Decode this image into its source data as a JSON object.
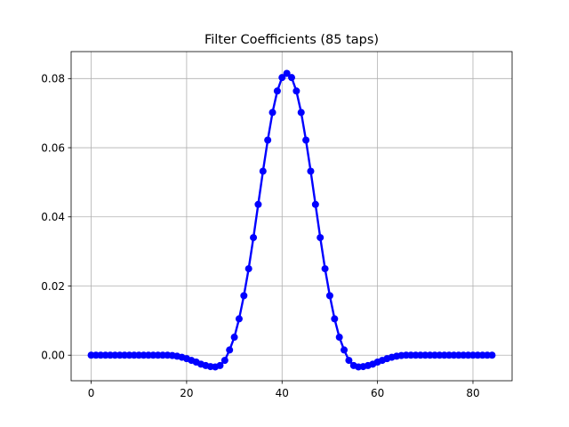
{
  "chart_data": {
    "type": "line",
    "title": "Filter Coefficients (85 taps)",
    "xlabel": "",
    "ylabel": "",
    "xlim": [
      -4.2,
      88.2
    ],
    "ylim": [
      -0.0074,
      0.0878
    ],
    "xticks": [
      0,
      20,
      40,
      60,
      80
    ],
    "xtick_labels": [
      "0",
      "20",
      "40",
      "60",
      "80"
    ],
    "yticks": [
      0.0,
      0.02,
      0.04,
      0.06,
      0.08
    ],
    "ytick_labels": [
      "0.00",
      "0.02",
      "0.04",
      "0.06",
      "0.08"
    ],
    "grid": true,
    "legend": "none",
    "series": [
      {
        "color": "#0000ff",
        "marker": "circle",
        "x": [
          0,
          1,
          2,
          3,
          4,
          5,
          6,
          7,
          8,
          9,
          10,
          11,
          12,
          13,
          14,
          15,
          16,
          17,
          18,
          19,
          20,
          21,
          22,
          23,
          24,
          25,
          26,
          27,
          28,
          29,
          30,
          31,
          32,
          33,
          34,
          35,
          36,
          37,
          38,
          39,
          40,
          41,
          42,
          43,
          44,
          45,
          46,
          47,
          48,
          49,
          50,
          51,
          52,
          53,
          54,
          55,
          56,
          57,
          58,
          59,
          60,
          61,
          62,
          63,
          64,
          65,
          66,
          67,
          68,
          69,
          70,
          71,
          72,
          73,
          74,
          75,
          76,
          77,
          78,
          79,
          80,
          81,
          82,
          83,
          84
        ],
        "values": [
          0.0,
          0.0,
          0.0,
          0.0,
          0.0,
          0.0,
          0.0,
          0.0,
          0.0,
          0.0,
          0.0,
          0.0,
          0.0,
          0.0,
          0.0,
          0.0,
          0.0,
          -0.0001,
          -0.0003,
          -0.0006,
          -0.001,
          -0.0015,
          -0.002,
          -0.0026,
          -0.003,
          -0.0033,
          -0.0034,
          -0.003,
          -0.0015,
          0.0015,
          0.0052,
          0.0105,
          0.0172,
          0.025,
          0.034,
          0.0436,
          0.0532,
          0.0622,
          0.0702,
          0.0764,
          0.0803,
          0.0815,
          0.0803,
          0.0764,
          0.0702,
          0.0622,
          0.0532,
          0.0436,
          0.034,
          0.025,
          0.0172,
          0.0105,
          0.0052,
          0.0015,
          -0.0015,
          -0.003,
          -0.0034,
          -0.0033,
          -0.003,
          -0.0026,
          -0.002,
          -0.0015,
          -0.001,
          -0.0006,
          -0.0003,
          -0.0001,
          0.0,
          0.0,
          0.0,
          0.0,
          0.0,
          0.0,
          0.0,
          0.0,
          0.0,
          0.0,
          0.0,
          0.0,
          0.0,
          0.0,
          0.0,
          0.0,
          0.0,
          0.0,
          0.0
        ]
      }
    ]
  }
}
